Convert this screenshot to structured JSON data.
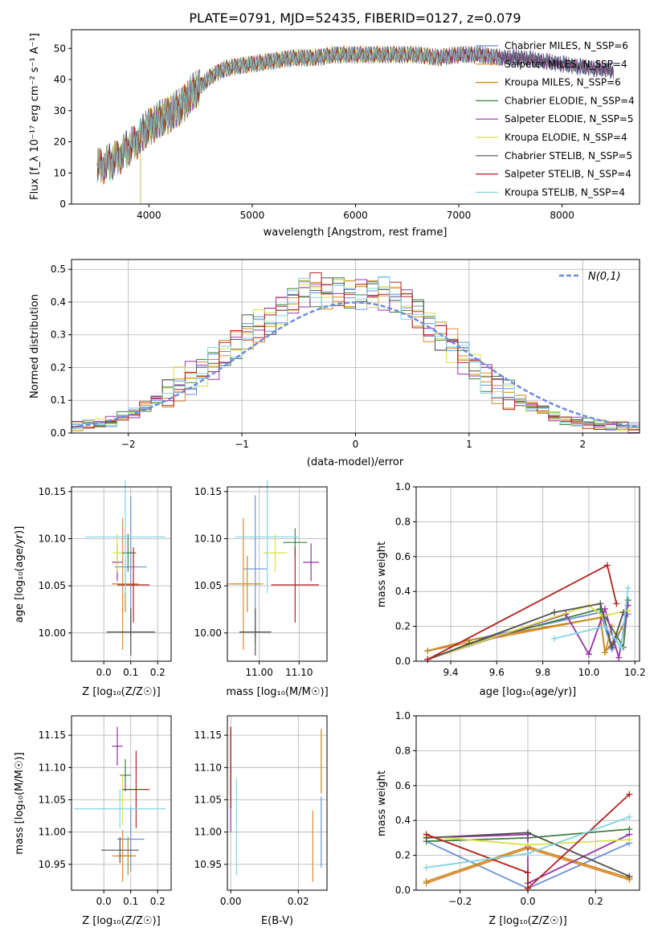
{
  "figure": {
    "title": "PLATE=0791, MJD=52435, FIBERID=0127, z=0.079"
  },
  "colors": [
    "#6a8edb",
    "#e0882f",
    "#c48a1c",
    "#3f7f3f",
    "#9932a8",
    "#d8e04a",
    "#505050",
    "#b22222",
    "#82d4e6"
  ],
  "chart_data": [
    {
      "id": "spectrum",
      "type": "line",
      "title": "PLATE=0791, MJD=52435, FIBERID=0127, z=0.079",
      "xlabel": "wavelength [Angstrom, rest frame]",
      "ylabel": "Flux [f_λ 10⁻¹⁷ erg cm⁻² s⁻¹ A⁻¹]",
      "xlim": [
        3250,
        8750
      ],
      "ylim": [
        0,
        56
      ],
      "xticks": [
        4000,
        5000,
        6000,
        7000,
        8000
      ],
      "yticks": [
        0,
        10,
        20,
        30,
        40,
        50
      ],
      "grid": false,
      "legend_position": "right",
      "data_range_x": [
        3500,
        8500
      ],
      "series": [
        {
          "name": "Chabrier MILES, N_SSP=6"
        },
        {
          "name": "Salpeter MILES, N_SSP=4"
        },
        {
          "name": "Kroupa MILES, N_SSP=6"
        },
        {
          "name": "Chabrier ELODIE, N_SSP=4"
        },
        {
          "name": "Salpeter ELODIE, N_SSP=5"
        },
        {
          "name": "Kroupa ELODIE, N_SSP=4"
        },
        {
          "name": "Chabrier STELIB, N_SSP=5"
        },
        {
          "name": "Salpeter STELIB, N_SSP=4"
        },
        {
          "name": "Kroupa STELIB, N_SSP=4"
        }
      ],
      "continuum": {
        "x": [
          3500,
          3600,
          3700,
          3800,
          3900,
          4000,
          4100,
          4200,
          4300,
          4400,
          4500,
          4600,
          4700,
          4800,
          5000,
          5200,
          5400,
          5600,
          5800,
          6000,
          6200,
          6400,
          6600,
          6800,
          7000,
          7200,
          7400,
          7600,
          7800,
          8000,
          8200,
          8500
        ],
        "y": [
          12,
          13,
          15,
          18,
          21,
          25,
          27,
          29,
          31,
          35,
          38,
          41,
          43,
          44,
          45,
          46,
          47,
          47,
          48,
          48,
          48,
          48,
          48,
          47,
          48,
          48,
          47,
          47,
          46,
          45,
          44,
          43
        ]
      },
      "series_ranges": [
        [
          3500,
          8500
        ],
        [
          3500,
          7400
        ],
        [
          3500,
          7400
        ],
        [
          3920,
          8500
        ],
        [
          3920,
          8500
        ],
        [
          3920,
          6800
        ],
        [
          3500,
          8500
        ],
        [
          3500,
          7400
        ],
        [
          3500,
          7400
        ]
      ]
    },
    {
      "id": "residuals",
      "type": "bar",
      "xlabel": "(data-model)/error",
      "ylabel": "Normed distribution",
      "xlim": [
        -2.5,
        2.5
      ],
      "ylim": [
        0,
        0.53
      ],
      "xticks": [
        -2,
        -1,
        0,
        1,
        2
      ],
      "yticks": [
        0.0,
        0.1,
        0.2,
        0.3,
        0.4,
        0.5
      ],
      "grid": true,
      "legend_position": "top-right",
      "legend": "N(0,1)",
      "bin_width": 0.1,
      "histogram_envelope": {
        "x": [
          -2.45,
          -2.35,
          -2.25,
          -2.15,
          -2.05,
          -1.95,
          -1.85,
          -1.75,
          -1.65,
          -1.55,
          -1.45,
          -1.35,
          -1.25,
          -1.15,
          -1.05,
          -0.95,
          -0.85,
          -0.75,
          -0.65,
          -0.55,
          -0.45,
          -0.35,
          -0.25,
          -0.15,
          -0.05,
          0.05,
          0.15,
          0.25,
          0.35,
          0.45,
          0.55,
          0.65,
          0.75,
          0.85,
          0.95,
          1.05,
          1.15,
          1.25,
          1.35,
          1.45,
          1.55,
          1.65,
          1.75,
          1.85,
          1.95,
          2.05,
          2.15,
          2.25,
          2.35,
          2.45
        ],
        "y": [
          0.02,
          0.025,
          0.03,
          0.035,
          0.05,
          0.06,
          0.08,
          0.1,
          0.12,
          0.15,
          0.17,
          0.19,
          0.21,
          0.24,
          0.27,
          0.31,
          0.33,
          0.35,
          0.38,
          0.4,
          0.43,
          0.44,
          0.43,
          0.44,
          0.43,
          0.43,
          0.43,
          0.43,
          0.42,
          0.4,
          0.37,
          0.33,
          0.3,
          0.27,
          0.23,
          0.2,
          0.17,
          0.14,
          0.12,
          0.1,
          0.08,
          0.07,
          0.05,
          0.04,
          0.035,
          0.03,
          0.025,
          0.02,
          0.02,
          0.015
        ]
      }
    },
    {
      "id": "age-vs-Z",
      "type": "scatter",
      "xlabel": "Z [log₁₀(Z/Z☉)]",
      "ylabel": "age  [log₁₀(age/yr)]",
      "xlim": [
        -0.12,
        0.25
      ],
      "ylim": [
        9.97,
        10.155
      ],
      "xticks": [
        0.0,
        0.1,
        0.2
      ],
      "yticks": [
        10.0,
        10.05,
        10.1,
        10.15
      ],
      "grid": true,
      "points": [
        {
          "x": 0.1,
          "y": 10.07,
          "xerr": 0.06,
          "yerr": 0.075
        },
        {
          "x": 0.07,
          "y": 10.052,
          "xerr": 0.04,
          "yerr": 0.07
        },
        {
          "x": 0.08,
          "y": 10.052,
          "xerr": 0.05,
          "yerr": 0.03
        },
        {
          "x": 0.09,
          "y": 10.085,
          "xerr": 0.03,
          "yerr": 0.02
        },
        {
          "x": 0.05,
          "y": 10.075,
          "xerr": 0.02,
          "yerr": 0.02
        },
        {
          "x": 0.05,
          "y": 10.085,
          "xerr": 0.02,
          "yerr": 0.02
        },
        {
          "x": 0.1,
          "y": 10.001,
          "xerr": 0.09,
          "yerr": 0.025
        },
        {
          "x": 0.11,
          "y": 10.051,
          "xerr": 0.06,
          "yerr": 0.04
        },
        {
          "x": 0.08,
          "y": 10.102,
          "xerr": 0.15,
          "yerr": 0.06
        }
      ]
    },
    {
      "id": "age-vs-mass",
      "type": "scatter",
      "xlabel": "mass [log₁₀(M/M☉)]",
      "ylabel": "",
      "xlim": [
        10.92,
        11.17
      ],
      "ylim": [
        9.97,
        10.155
      ],
      "xticks": [
        11.0,
        11.1
      ],
      "yticks": [
        10.0,
        10.05,
        10.1,
        10.15
      ],
      "grid": true,
      "points": [
        {
          "x": 10.99,
          "y": 10.068,
          "xerr": 0.03,
          "yerr": 0.078
        },
        {
          "x": 10.96,
          "y": 10.052,
          "xerr": 0.04,
          "yerr": 0.07
        },
        {
          "x": 10.97,
          "y": 10.052,
          "xerr": 0.04,
          "yerr": 0.03
        },
        {
          "x": 11.09,
          "y": 10.096,
          "xerr": 0.03,
          "yerr": 0.015
        },
        {
          "x": 11.13,
          "y": 10.075,
          "xerr": 0.02,
          "yerr": 0.02
        },
        {
          "x": 11.04,
          "y": 10.085,
          "xerr": 0.03,
          "yerr": 0.02
        },
        {
          "x": 10.99,
          "y": 10.001,
          "xerr": 0.04,
          "yerr": 0.025
        },
        {
          "x": 11.09,
          "y": 10.051,
          "xerr": 0.06,
          "yerr": 0.04
        },
        {
          "x": 11.02,
          "y": 10.102,
          "xerr": 0.08,
          "yerr": 0.06
        }
      ]
    },
    {
      "id": "weight-vs-age",
      "type": "line",
      "xlabel": "age  [log₁₀(age/yr)]",
      "ylabel": "mass weight",
      "xlim": [
        9.25,
        10.22
      ],
      "ylim": [
        0.0,
        1.0
      ],
      "xticks": [
        9.4,
        9.6,
        9.8,
        10.0,
        10.2
      ],
      "yticks": [
        0.0,
        0.2,
        0.4,
        0.6,
        0.8,
        1.0
      ],
      "grid": true,
      "series": [
        {
          "x": [
            9.3,
            9.48,
            10.05,
            10.1,
            10.17
          ],
          "y": [
            0.06,
            0.12,
            0.28,
            0.07,
            0.27
          ]
        },
        {
          "x": [
            9.3,
            10.05,
            10.07,
            10.1
          ],
          "y": [
            0.06,
            0.25,
            0.05,
            0.2
          ]
        },
        {
          "x": [
            9.3,
            9.48,
            10.05,
            10.07,
            10.15
          ],
          "y": [
            0.06,
            0.12,
            0.25,
            0.05,
            0.2
          ]
        },
        {
          "x": [
            9.3,
            9.48,
            10.05,
            10.15,
            10.17
          ],
          "y": [
            0.01,
            0.1,
            0.3,
            0.08,
            0.35
          ]
        },
        {
          "x": [
            9.3,
            9.9,
            10.0,
            10.07,
            10.13,
            10.17
          ],
          "y": [
            0.01,
            0.27,
            0.04,
            0.3,
            0.02,
            0.32
          ]
        },
        {
          "x": [
            9.3,
            10.0,
            10.06,
            10.17
          ],
          "y": [
            0.01,
            0.32,
            0.26,
            0.29
          ]
        },
        {
          "x": [
            9.3,
            9.85,
            10.05,
            10.1,
            10.15
          ],
          "y": [
            0.01,
            0.28,
            0.33,
            0.08,
            0.28
          ]
        },
        {
          "x": [
            9.3,
            10.08,
            10.12
          ],
          "y": [
            0.01,
            0.55,
            0.33
          ]
        },
        {
          "x": [
            9.85,
            10.07,
            10.14,
            10.17
          ],
          "y": [
            0.13,
            0.2,
            0.08,
            0.42
          ]
        }
      ]
    },
    {
      "id": "mass-vs-Z",
      "type": "scatter",
      "xlabel": "Z [log₁₀(Z/Z☉)]",
      "ylabel": "mass [log₁₀(M/M☉)]",
      "xlim": [
        -0.12,
        0.25
      ],
      "ylim": [
        10.91,
        11.18
      ],
      "xticks": [
        0.0,
        0.1,
        0.2
      ],
      "yticks": [
        10.95,
        11.0,
        11.05,
        11.1,
        11.15
      ],
      "grid": true,
      "points": [
        {
          "x": 0.1,
          "y": 10.989,
          "xerr": 0.05,
          "yerr": 0.05
        },
        {
          "x": 0.07,
          "y": 10.963,
          "xerr": 0.04,
          "yerr": 0.04
        },
        {
          "x": 0.09,
          "y": 10.963,
          "xerr": 0.03,
          "yerr": 0.03
        },
        {
          "x": 0.08,
          "y": 11.088,
          "xerr": 0.02,
          "yerr": 0.025
        },
        {
          "x": 0.05,
          "y": 11.133,
          "xerr": 0.02,
          "yerr": 0.03
        },
        {
          "x": 0.07,
          "y": 11.05,
          "xerr": 0.03,
          "yerr": 0.04
        },
        {
          "x": 0.06,
          "y": 10.972,
          "xerr": 0.07,
          "yerr": 0.02
        },
        {
          "x": 0.12,
          "y": 11.066,
          "xerr": 0.05,
          "yerr": 0.06
        },
        {
          "x": 0.06,
          "y": 11.036,
          "xerr": 0.17,
          "yerr": 0.03
        }
      ]
    },
    {
      "id": "mass-vs-ebv",
      "type": "scatter",
      "xlabel": "E(B-V)",
      "ylabel": "",
      "xlim": [
        -0.001,
        0.0285
      ],
      "ylim": [
        10.91,
        11.18
      ],
      "xticks": [
        0.0,
        0.02
      ],
      "yticks": [
        10.95,
        11.0,
        11.05,
        11.1,
        11.15
      ],
      "grid": true,
      "points": [
        {
          "x": 0.0268,
          "y": 11.0,
          "xerr": 0,
          "yerr": 0.055
        },
        {
          "x": 0.0243,
          "y": 10.978,
          "xerr": 0,
          "yerr": 0.055
        },
        {
          "x": 0.0268,
          "y": 11.11,
          "xerr": 0,
          "yerr": 0.05
        },
        {
          "x": 0.0,
          "y": 11.1,
          "xerr": 0,
          "yerr": 0.063
        },
        {
          "x": 0.0,
          "y": 11.02,
          "xerr": 0,
          "yerr": 0.02
        },
        {
          "x": 0.0,
          "y": 11.05,
          "xerr": 0,
          "yerr": 0.01
        },
        {
          "x": 0.0,
          "y": 11.1,
          "xerr": 0,
          "yerr": 0.063
        },
        {
          "x": 0.0,
          "y": 11.1,
          "xerr": 0,
          "yerr": 0.063
        },
        {
          "x": 0.0017,
          "y": 11.008,
          "xerr": 0,
          "yerr": 0.075
        }
      ]
    },
    {
      "id": "weight-vs-Z",
      "type": "line",
      "xlabel": "Z [log₁₀(Z/Z☉)]",
      "ylabel": "mass weight",
      "xlim": [
        -0.33,
        0.33
      ],
      "ylim": [
        0.0,
        1.0
      ],
      "xticks": [
        -0.2,
        0.0,
        0.2
      ],
      "yticks": [
        0.0,
        0.2,
        0.4,
        0.6,
        0.8,
        1.0
      ],
      "grid": true,
      "series": [
        {
          "x": [
            -0.3,
            0.0,
            0.3
          ],
          "y": [
            0.28,
            0.01,
            0.27
          ]
        },
        {
          "x": [
            -0.3,
            0.0,
            0.3
          ],
          "y": [
            0.04,
            0.24,
            0.06
          ]
        },
        {
          "x": [
            -0.3,
            0.0,
            0.3
          ],
          "y": [
            0.05,
            0.25,
            0.07
          ]
        },
        {
          "x": [
            -0.3,
            0.0,
            0.3
          ],
          "y": [
            0.28,
            0.3,
            0.35
          ]
        },
        {
          "x": [
            -0.3,
            0.0,
            0.0,
            0.3
          ],
          "y": [
            0.3,
            0.32,
            0.04,
            0.32
          ]
        },
        {
          "x": [
            -0.3,
            0.0,
            0.3
          ],
          "y": [
            0.31,
            0.26,
            0.29
          ]
        },
        {
          "x": [
            -0.3,
            0.0,
            0.3
          ],
          "y": [
            0.3,
            0.33,
            0.08
          ]
        },
        {
          "x": [
            -0.3,
            0.0,
            0.0,
            0.3
          ],
          "y": [
            0.32,
            0.1,
            0.01,
            0.55
          ]
        },
        {
          "x": [
            -0.3,
            0.0,
            0.3
          ],
          "y": [
            0.13,
            0.21,
            0.42
          ]
        }
      ]
    }
  ]
}
